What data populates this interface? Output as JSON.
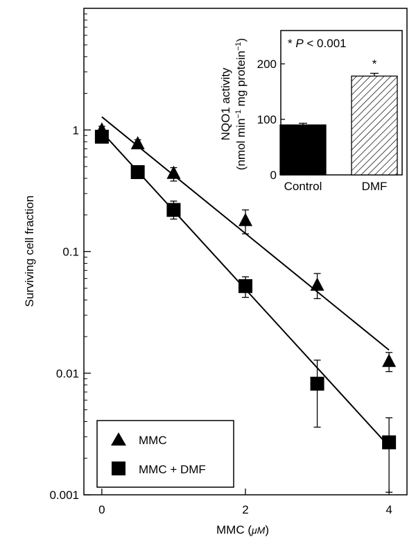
{
  "chart_data": [
    {
      "type": "scatter",
      "xlabel_prefix": "MMC (",
      "xlabel_unit": "μM",
      "xlabel_suffix": ")",
      "ylabel": "Surviving cell fraction",
      "y_scale": "log",
      "xlim": [
        -0.25,
        4.25
      ],
      "ylim": [
        0.001,
        10
      ],
      "x_ticks": [
        0,
        2,
        4
      ],
      "x_tick_labels": [
        "0",
        "2",
        "4"
      ],
      "y_ticks": [
        1,
        0.1,
        0.01,
        0.001
      ],
      "y_tick_labels": [
        "1",
        "0.1",
        "0.01",
        "0.001"
      ],
      "legend_placement": "bottom-left",
      "series": [
        {
          "name": "MMC",
          "marker": "triangle",
          "x": [
            0,
            0.5,
            1,
            2,
            3,
            4
          ],
          "y": [
            1.0,
            0.77,
            0.44,
            0.18,
            0.053,
            0.0125
          ],
          "err_low": [
            0.92,
            0.72,
            0.38,
            0.14,
            0.041,
            0.0103
          ],
          "err_high": [
            1.07,
            0.83,
            0.49,
            0.22,
            0.066,
            0.0148
          ],
          "fit": [
            [
              0,
              1.28
            ],
            [
              4,
              0.0155
            ]
          ]
        },
        {
          "name": "MMC + DMF",
          "marker": "square",
          "x": [
            0,
            0.5,
            1,
            2,
            3,
            4
          ],
          "y": [
            0.88,
            0.45,
            0.22,
            0.052,
            0.0082,
            0.0027
          ],
          "err_low": [
            0.82,
            0.42,
            0.185,
            0.042,
            0.0036,
            0.00105
          ],
          "err_high": [
            0.94,
            0.48,
            0.26,
            0.062,
            0.0128,
            0.0043
          ],
          "fit": [
            [
              0,
              0.96
            ],
            [
              4,
              0.0025
            ]
          ]
        }
      ]
    },
    {
      "type": "bar",
      "annotation_star": "* ",
      "annotation_p": "P",
      "annotation_rest": " < 0.001",
      "ylabel_line1": "NQO1 activity",
      "ylabel_line2_a": "(nmol min",
      "ylabel_line2_sup1": "−1",
      "ylabel_line2_b": " mg protein",
      "ylabel_line2_sup2": "−1",
      "ylabel_line2_c": ")",
      "categories": [
        "Control",
        "DMF"
      ],
      "values": [
        90,
        178
      ],
      "errors": [
        3,
        5
      ],
      "significance": [
        "",
        "*"
      ],
      "ylim": [
        0,
        260
      ],
      "y_ticks": [
        0,
        100,
        200
      ],
      "y_tick_labels": [
        "0",
        "100",
        "200"
      ]
    }
  ]
}
